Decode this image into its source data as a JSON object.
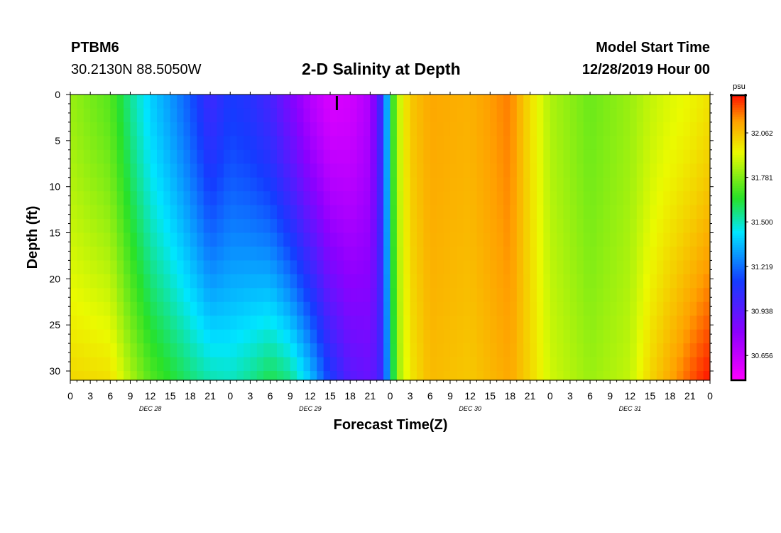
{
  "header": {
    "station_id": "PTBM6",
    "station_coords": "30.2130N 88.5050W",
    "title": "2-D Salinity at Depth",
    "model_start_label": "Model Start Time",
    "model_start_value": "12/28/2019 Hour 00"
  },
  "chart_data": {
    "type": "heatmap",
    "title": "2-D Salinity at Depth",
    "xlabel": "Forecast Time(Z)",
    "ylabel": "Depth (ft)",
    "x_unit": "hours from model start",
    "xlim": [
      0,
      96
    ],
    "ylim": [
      0,
      31
    ],
    "y_ticks": [
      0,
      5,
      10,
      15,
      20,
      25,
      30
    ],
    "y_tick_labels": [
      "0",
      "5",
      "10",
      "15",
      "20",
      "25",
      "30"
    ],
    "x_ticks": [
      0,
      3,
      6,
      9,
      12,
      15,
      18,
      21,
      24,
      27,
      30,
      33,
      36,
      39,
      42,
      45,
      48,
      51,
      54,
      57,
      60,
      63,
      66,
      69,
      72,
      75,
      78,
      81,
      84,
      87,
      90,
      93,
      96
    ],
    "x_tick_labels": [
      "0",
      "3",
      "6",
      "9",
      "12",
      "15",
      "18",
      "21",
      "0",
      "3",
      "6",
      "9",
      "12",
      "15",
      "18",
      "21",
      "0",
      "3",
      "6",
      "9",
      "12",
      "15",
      "18",
      "21",
      "0",
      "3",
      "6",
      "9",
      "12",
      "15",
      "18",
      "21",
      "0"
    ],
    "day_labels": [
      {
        "hour": 12,
        "label": "DEC 28"
      },
      {
        "hour": 36,
        "label": "DEC 29"
      },
      {
        "hour": 60,
        "label": "DEC 30"
      },
      {
        "hour": 84,
        "label": "DEC 31"
      }
    ],
    "marker_hour": 40,
    "colorbar": {
      "unit": "psu",
      "vmin": 30.5,
      "vmax": 32.3,
      "ticks": [
        30.656,
        30.938,
        31.219,
        31.5,
        31.781,
        32.062
      ],
      "tick_labels": [
        "30.656",
        "30.938",
        "31.219",
        "31.500",
        "31.781",
        "32.062"
      ]
    },
    "depth_levels_ft": [
      0,
      1.5,
      3,
      4.5,
      6,
      7.5,
      9,
      10.5,
      12,
      13.5,
      15,
      16.5,
      18,
      19.5,
      21,
      22.5,
      24,
      25.5,
      27,
      28.5,
      30,
      31
    ],
    "profile_hours": [
      0,
      6,
      9,
      12,
      15,
      18,
      21,
      24,
      27,
      30,
      33,
      36,
      39,
      42,
      45,
      47,
      48,
      49,
      51,
      54,
      60,
      66,
      69,
      72,
      78,
      84,
      87,
      90,
      93,
      95,
      96
    ],
    "profiles": [
      {
        "hour": 0,
        "surface": 31.82,
        "bottom": 32.02
      },
      {
        "hour": 6,
        "surface": 31.72,
        "bottom": 32.0
      },
      {
        "hour": 9,
        "surface": 31.55,
        "bottom": 31.85
      },
      {
        "hour": 12,
        "surface": 31.4,
        "bottom": 31.72
      },
      {
        "hour": 15,
        "surface": 31.3,
        "bottom": 31.65
      },
      {
        "hour": 18,
        "surface": 31.18,
        "bottom": 31.58
      },
      {
        "hour": 21,
        "surface": 31.02,
        "bottom": 31.52
      },
      {
        "hour": 24,
        "surface": 31.12,
        "bottom": 31.5
      },
      {
        "hour": 27,
        "surface": 31.08,
        "bottom": 31.55
      },
      {
        "hour": 30,
        "surface": 31.0,
        "bottom": 31.62
      },
      {
        "hour": 33,
        "surface": 30.85,
        "bottom": 31.56
      },
      {
        "hour": 36,
        "surface": 30.7,
        "bottom": 31.38
      },
      {
        "hour": 39,
        "surface": 30.6,
        "bottom": 31.12
      },
      {
        "hour": 42,
        "surface": 30.62,
        "bottom": 30.95
      },
      {
        "hour": 45,
        "surface": 30.72,
        "bottom": 30.9
      },
      {
        "hour": 47,
        "surface": 31.1,
        "bottom": 31.05
      },
      {
        "hour": 48,
        "surface": 31.55,
        "bottom": 31.45
      },
      {
        "hour": 49,
        "surface": 31.85,
        "bottom": 31.8
      },
      {
        "hour": 51,
        "surface": 32.05,
        "bottom": 31.98
      },
      {
        "hour": 54,
        "surface": 32.12,
        "bottom": 32.08
      },
      {
        "hour": 60,
        "surface": 32.1,
        "bottom": 32.05
      },
      {
        "hour": 66,
        "surface": 32.18,
        "bottom": 32.12
      },
      {
        "hour": 69,
        "surface": 32.0,
        "bottom": 32.02
      },
      {
        "hour": 72,
        "surface": 31.85,
        "bottom": 31.9
      },
      {
        "hour": 78,
        "surface": 31.75,
        "bottom": 31.82
      },
      {
        "hour": 84,
        "surface": 31.82,
        "bottom": 31.88
      },
      {
        "hour": 87,
        "surface": 31.88,
        "bottom": 32.02
      },
      {
        "hour": 90,
        "surface": 31.92,
        "bottom": 32.12
      },
      {
        "hour": 93,
        "surface": 31.95,
        "bottom": 32.22
      },
      {
        "hour": 95,
        "surface": 31.98,
        "bottom": 32.28
      },
      {
        "hour": 96,
        "surface": 32.0,
        "bottom": 32.3
      }
    ]
  }
}
